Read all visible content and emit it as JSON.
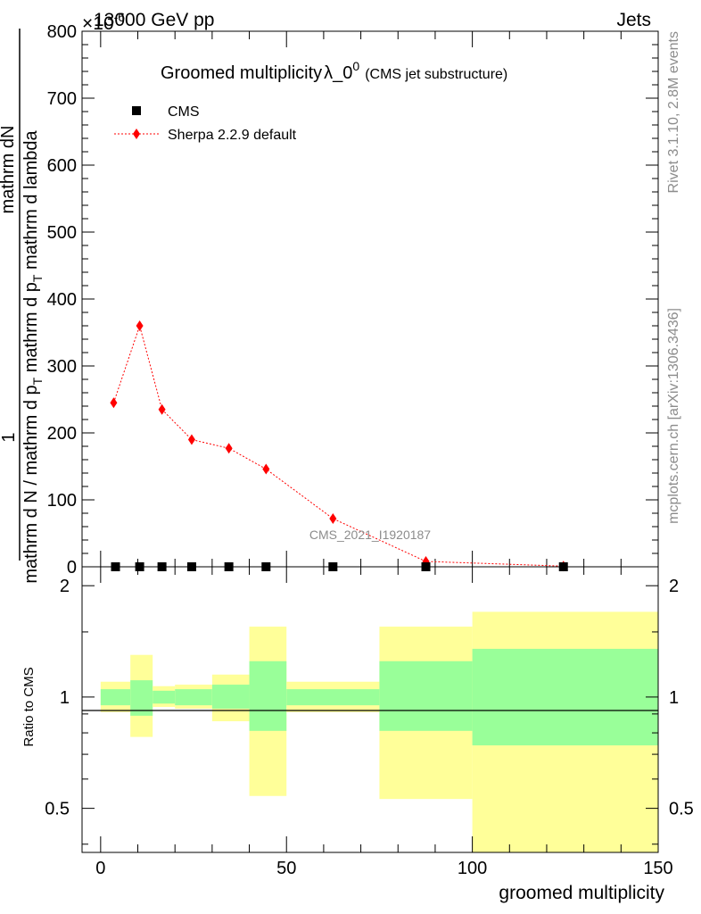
{
  "header": {
    "energy_label": "13000 GeV pp",
    "process_label": "Jets",
    "exponent_label": "×10",
    "exponent_sup": "-6"
  },
  "side_labels": {
    "rivet": "Rivet 3.1.10,  2.8M events",
    "mcplots": "mcplots.cern.ch [arXiv:1306.3436]"
  },
  "chart_data": [
    {
      "type": "scatter",
      "title": "Groomed multiplicity",
      "title_symbol": "λ_0",
      "title_sup": "0",
      "subtitle": "(CMS jet substructure)",
      "ylabel_numerator": "mathrm dN",
      "ylabel_denominator": "mathrm d N / mathrm d p",
      "ylabel_denominator_2": "mathrm d p",
      "ylabel_denominator_3": "mathrm d lambda",
      "ylabel_sub": "T",
      "ylabel_one": "1",
      "analysis_id": "CMS_2021_I1920187",
      "xlim": [
        -5,
        150
      ],
      "ylim": [
        0,
        800
      ],
      "yticks": [
        0,
        100,
        200,
        300,
        400,
        500,
        600,
        700,
        800
      ],
      "legend_position": "top-left",
      "series": [
        {
          "name": "CMS",
          "color": "#000000",
          "marker": "square",
          "x": [
            4,
            10.5,
            16.5,
            24.5,
            34.5,
            44.5,
            62.5,
            87.5,
            124.5
          ],
          "y": [
            0,
            0,
            0,
            0,
            0,
            0,
            0,
            0,
            0
          ]
        },
        {
          "name": "Sherpa 2.2.9 default",
          "color": "#ff0000",
          "marker": "diamond",
          "line": "dotted",
          "x": [
            3.5,
            10.5,
            16.5,
            24.5,
            34.5,
            44.5,
            62.5,
            87.5,
            124.5
          ],
          "y": [
            245,
            360,
            235,
            190,
            177,
            146,
            72,
            8,
            1
          ]
        }
      ]
    },
    {
      "type": "area",
      "ylabel": "Ratio to CMS",
      "xlabel": "groomed multiplicity",
      "xlim": [
        -5,
        150
      ],
      "ylim": [
        0.38,
        2.25
      ],
      "yticks": [
        0.5,
        1,
        2
      ],
      "xticks": [
        0,
        50,
        100,
        150
      ],
      "log_y": true,
      "colors": {
        "inner": "#99ff99",
        "outer": "#ffff99"
      },
      "bands": [
        {
          "x0": 0,
          "x1": 8,
          "inner": [
            0.95,
            1.05
          ],
          "outer": [
            0.91,
            1.1
          ]
        },
        {
          "x0": 8,
          "x1": 14,
          "inner": [
            0.89,
            1.11
          ],
          "outer": [
            0.78,
            1.3
          ]
        },
        {
          "x0": 14,
          "x1": 20,
          "inner": [
            0.96,
            1.04
          ],
          "outer": [
            0.94,
            1.07
          ]
        },
        {
          "x0": 20,
          "x1": 30,
          "inner": [
            0.95,
            1.05
          ],
          "outer": [
            0.93,
            1.08
          ]
        },
        {
          "x0": 30,
          "x1": 40,
          "inner": [
            0.93,
            1.08
          ],
          "outer": [
            0.86,
            1.15
          ]
        },
        {
          "x0": 40,
          "x1": 50,
          "inner": [
            0.81,
            1.25
          ],
          "outer": [
            0.54,
            1.55
          ]
        },
        {
          "x0": 50,
          "x1": 75,
          "inner": [
            0.95,
            1.05
          ],
          "outer": [
            0.91,
            1.1
          ]
        },
        {
          "x0": 75,
          "x1": 100,
          "inner": [
            0.81,
            1.25
          ],
          "outer": [
            0.53,
            1.55
          ]
        },
        {
          "x0": 100,
          "x1": 150,
          "inner": [
            0.74,
            1.35
          ],
          "outer": [
            0.3,
            1.7
          ]
        }
      ]
    }
  ]
}
